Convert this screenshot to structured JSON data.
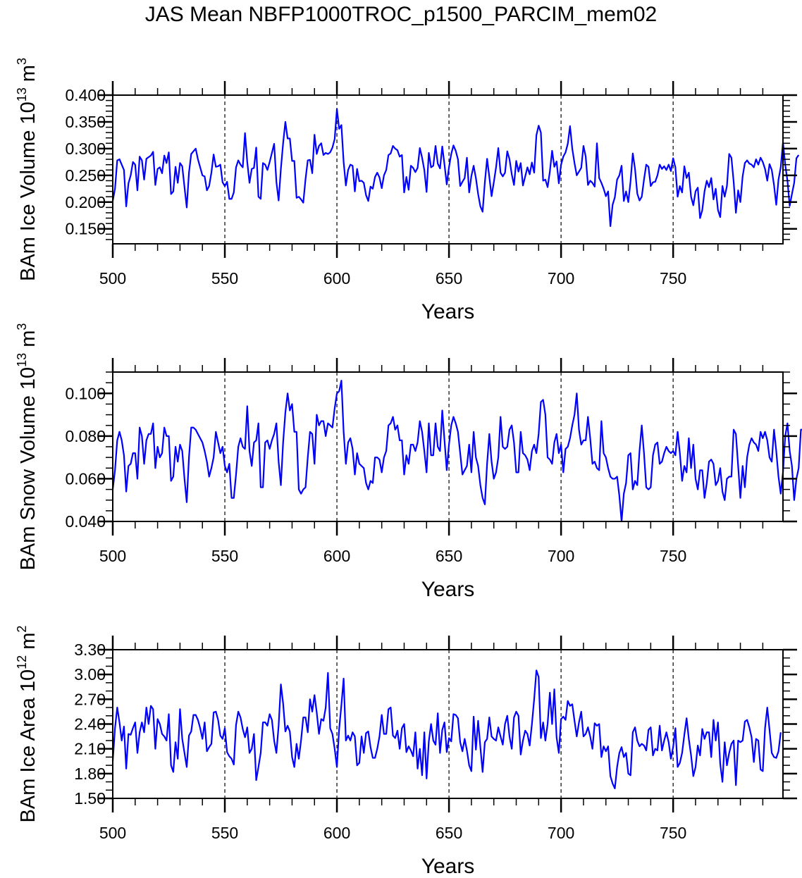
{
  "chart_data": {
    "title": "JAS Mean NBFP1000TROC_p1500_PARCIM_mem02",
    "panels": [
      {
        "type": "line",
        "ylabel": "BAm Ice Volume 10",
        "ylabel_exp": "13",
        "ylabel_unit": " m",
        "ylabel_unit_exp": "3",
        "xlabel": "Years",
        "xlim": [
          500,
          799
        ],
        "ylim": [
          0.122,
          0.4
        ],
        "x_ticks": [
          "500",
          "550",
          "600",
          "650",
          "700",
          "750"
        ],
        "x_tick_values": [
          500,
          550,
          600,
          650,
          700,
          750
        ],
        "y_ticks": [
          "0.150",
          "0.200",
          "0.250",
          "0.300",
          "0.350",
          "0.400"
        ],
        "y_tick_values": [
          0.15,
          0.2,
          0.25,
          0.3,
          0.35,
          0.4
        ],
        "y_minor_step": 0.01,
        "vlines": [
          550,
          600,
          650,
          700,
          750
        ],
        "line_color": "#0000ff",
        "x_start": 500,
        "values": [
          0.202,
          0.225,
          0.278,
          0.28,
          0.27,
          0.26,
          0.192,
          0.235,
          0.25,
          0.275,
          0.27,
          0.222,
          0.285,
          0.278,
          0.242,
          0.281,
          0.284,
          0.287,
          0.294,
          0.232,
          0.262,
          0.265,
          0.254,
          0.287,
          0.273,
          0.293,
          0.215,
          0.22,
          0.266,
          0.236,
          0.273,
          0.267,
          0.228,
          0.19,
          0.255,
          0.29,
          0.295,
          0.3,
          0.28,
          0.265,
          0.25,
          0.248,
          0.222,
          0.23,
          0.255,
          0.289,
          0.266,
          0.267,
          0.27,
          0.237,
          0.23,
          0.238,
          0.206,
          0.206,
          0.218,
          0.265,
          0.278,
          0.27,
          0.265,
          0.329,
          0.275,
          0.236,
          0.262,
          0.264,
          0.302,
          0.21,
          0.206,
          0.273,
          0.27,
          0.26,
          0.275,
          0.292,
          0.309,
          0.238,
          0.203,
          0.262,
          0.31,
          0.35,
          0.319,
          0.319,
          0.277,
          0.277,
          0.208,
          0.21,
          0.205,
          0.199,
          0.243,
          0.278,
          0.279,
          0.254,
          0.326,
          0.29,
          0.305,
          0.31,
          0.288,
          0.292,
          0.29,
          0.293,
          0.302,
          0.318,
          0.374,
          0.337,
          0.344,
          0.275,
          0.231,
          0.26,
          0.27,
          0.268,
          0.22,
          0.262,
          0.239,
          0.24,
          0.236,
          0.213,
          0.202,
          0.229,
          0.225,
          0.247,
          0.255,
          0.246,
          0.226,
          0.25,
          0.26,
          0.288,
          0.291,
          0.305,
          0.3,
          0.297,
          0.285,
          0.288,
          0.218,
          0.247,
          0.223,
          0.268,
          0.264,
          0.256,
          0.264,
          0.301,
          0.283,
          0.26,
          0.219,
          0.292,
          0.265,
          0.268,
          0.305,
          0.272,
          0.263,
          0.304,
          0.27,
          0.233,
          0.265,
          0.29,
          0.306,
          0.296,
          0.28,
          0.23,
          0.238,
          0.245,
          0.283,
          0.218,
          0.249,
          0.268,
          0.245,
          0.215,
          0.192,
          0.182,
          0.237,
          0.281,
          0.247,
          0.211,
          0.237,
          0.265,
          0.301,
          0.255,
          0.248,
          0.255,
          0.295,
          0.28,
          0.252,
          0.232,
          0.277,
          0.257,
          0.273,
          0.231,
          0.248,
          0.265,
          0.252,
          0.274,
          0.255,
          0.325,
          0.343,
          0.33,
          0.24,
          0.242,
          0.228,
          0.257,
          0.296,
          0.266,
          0.276,
          0.235,
          0.27,
          0.285,
          0.293,
          0.309,
          0.342,
          0.3,
          0.273,
          0.25,
          0.257,
          0.264,
          0.305,
          0.285,
          0.232,
          0.24,
          0.236,
          0.229,
          0.31,
          0.245,
          0.236,
          0.225,
          0.211,
          0.22,
          0.155,
          0.195,
          0.209,
          0.242,
          0.25,
          0.268,
          0.202,
          0.22,
          0.2,
          0.239,
          0.291,
          0.262,
          0.216,
          0.203,
          0.21,
          0.242,
          0.27,
          0.266,
          0.23,
          0.237,
          0.238,
          0.25,
          0.27,
          0.262,
          0.267,
          0.26,
          0.27,
          0.258,
          0.282,
          0.265,
          0.21,
          0.23,
          0.218,
          0.267,
          0.245,
          0.255,
          0.21,
          0.194,
          0.22,
          0.227,
          0.17,
          0.185,
          0.22,
          0.24,
          0.228,
          0.245,
          0.205,
          0.225,
          0.185,
          0.172,
          0.23,
          0.21,
          0.23,
          0.29,
          0.283,
          0.238,
          0.18,
          0.222,
          0.2,
          0.248,
          0.273,
          0.278,
          0.272,
          0.27,
          0.265,
          0.28,
          0.27,
          0.283,
          0.275,
          0.262,
          0.24,
          0.271,
          0.26,
          0.232,
          0.195,
          0.242,
          0.265,
          0.312,
          0.27,
          0.24,
          0.193,
          0.215,
          0.236,
          0.282,
          0.288
        ]
      },
      {
        "type": "line",
        "ylabel": "BAm Snow Volume 10",
        "ylabel_exp": "13",
        "ylabel_unit": " m",
        "ylabel_unit_exp": "3",
        "xlabel": "Years",
        "xlim": [
          500,
          799
        ],
        "ylim": [
          0.04,
          0.11
        ],
        "x_ticks": [
          "500",
          "550",
          "600",
          "650",
          "700",
          "750"
        ],
        "x_tick_values": [
          500,
          550,
          600,
          650,
          700,
          750
        ],
        "y_ticks": [
          "0.040",
          "0.060",
          "0.080",
          "0.100"
        ],
        "y_tick_values": [
          0.04,
          0.06,
          0.08,
          0.1
        ],
        "y_minor_step": 0.005,
        "vlines": [
          550,
          600,
          650,
          700,
          750
        ],
        "line_color": "#0000ff",
        "x_start": 500,
        "values": [
          0.055,
          0.064,
          0.078,
          0.082,
          0.078,
          0.071,
          0.054,
          0.066,
          0.067,
          0.072,
          0.072,
          0.06,
          0.084,
          0.08,
          0.067,
          0.078,
          0.081,
          0.081,
          0.086,
          0.065,
          0.075,
          0.07,
          0.072,
          0.084,
          0.08,
          0.08,
          0.059,
          0.061,
          0.075,
          0.068,
          0.076,
          0.073,
          0.06,
          0.049,
          0.07,
          0.084,
          0.084,
          0.083,
          0.081,
          0.079,
          0.077,
          0.073,
          0.068,
          0.061,
          0.065,
          0.07,
          0.082,
          0.077,
          0.072,
          0.075,
          0.066,
          0.063,
          0.067,
          0.051,
          0.051,
          0.062,
          0.075,
          0.079,
          0.075,
          0.074,
          0.094,
          0.073,
          0.066,
          0.077,
          0.078,
          0.086,
          0.056,
          0.056,
          0.077,
          0.078,
          0.074,
          0.078,
          0.081,
          0.086,
          0.068,
          0.057,
          0.077,
          0.091,
          0.1,
          0.092,
          0.095,
          0.082,
          0.082,
          0.055,
          0.053,
          0.055,
          0.056,
          0.07,
          0.082,
          0.081,
          0.067,
          0.09,
          0.085,
          0.087,
          0.087,
          0.08,
          0.086,
          0.085,
          0.084,
          0.093,
          0.1,
          0.101,
          0.106,
          0.082,
          0.067,
          0.077,
          0.079,
          0.074,
          0.062,
          0.072,
          0.067,
          0.066,
          0.065,
          0.058,
          0.055,
          0.059,
          0.058,
          0.07,
          0.07,
          0.069,
          0.063,
          0.07,
          0.073,
          0.085,
          0.086,
          0.089,
          0.083,
          0.085,
          0.078,
          0.078,
          0.062,
          0.071,
          0.067,
          0.076,
          0.076,
          0.073,
          0.077,
          0.087,
          0.082,
          0.073,
          0.063,
          0.086,
          0.071,
          0.071,
          0.086,
          0.075,
          0.073,
          0.092,
          0.078,
          0.064,
          0.076,
          0.085,
          0.089,
          0.086,
          0.082,
          0.072,
          0.062,
          0.064,
          0.066,
          0.076,
          0.063,
          0.082,
          0.07,
          0.066,
          0.057,
          0.051,
          0.048,
          0.067,
          0.081,
          0.068,
          0.06,
          0.063,
          0.07,
          0.089,
          0.075,
          0.074,
          0.075,
          0.083,
          0.085,
          0.077,
          0.063,
          0.063,
          0.082,
          0.072,
          0.071,
          0.069,
          0.064,
          0.073,
          0.076,
          0.072,
          0.081,
          0.096,
          0.097,
          0.09,
          0.07,
          0.069,
          0.067,
          0.077,
          0.081,
          0.072,
          0.076,
          0.063,
          0.074,
          0.075,
          0.079,
          0.085,
          0.09,
          0.1,
          0.083,
          0.076,
          0.078,
          0.078,
          0.089,
          0.079,
          0.067,
          0.068,
          0.065,
          0.064,
          0.087,
          0.072,
          0.07,
          0.065,
          0.061,
          0.06,
          0.06,
          0.061,
          0.052,
          0.04,
          0.053,
          0.058,
          0.071,
          0.072,
          0.055,
          0.059,
          0.057,
          0.073,
          0.085,
          0.072,
          0.056,
          0.055,
          0.056,
          0.071,
          0.076,
          0.077,
          0.067,
          0.068,
          0.072,
          0.075,
          0.073,
          0.072,
          0.073,
          0.071,
          0.082,
          0.072,
          0.059,
          0.066,
          0.063,
          0.079,
          0.065,
          0.076,
          0.06,
          0.055,
          0.064,
          0.064,
          0.051,
          0.058,
          0.068,
          0.069,
          0.067,
          0.057,
          0.059,
          0.065,
          0.054,
          0.05,
          0.06,
          0.061,
          0.061,
          0.083,
          0.081,
          0.066,
          0.051,
          0.066,
          0.056,
          0.07,
          0.076,
          0.079,
          0.077,
          0.076,
          0.073,
          0.082,
          0.079,
          0.082,
          0.078,
          0.07,
          0.068,
          0.083,
          0.073,
          0.061,
          0.053,
          0.063,
          0.08,
          0.086,
          0.073,
          0.066,
          0.05,
          0.06,
          0.065,
          0.083,
          0.083
        ]
      },
      {
        "type": "line",
        "ylabel": "BAm Ice Area 10",
        "ylabel_exp": "12",
        "ylabel_unit": " m",
        "ylabel_unit_exp": "2",
        "xlabel": "Years",
        "xlim": [
          500,
          799
        ],
        "ylim": [
          1.5,
          3.3
        ],
        "x_ticks": [
          "500",
          "550",
          "600",
          "650",
          "700",
          "750"
        ],
        "x_tick_values": [
          500,
          550,
          600,
          650,
          700,
          750
        ],
        "y_ticks": [
          "1.50",
          "1.80",
          "2.10",
          "2.40",
          "2.70",
          "3.00",
          "3.30"
        ],
        "y_tick_values": [
          1.5,
          1.8,
          2.1,
          2.4,
          2.7,
          3.0,
          3.3
        ],
        "y_minor_step": 0.1,
        "vlines": [
          550,
          600,
          650,
          700,
          750
        ],
        "line_color": "#0000ff",
        "x_start": 500,
        "values": [
          1.95,
          2.35,
          2.6,
          2.42,
          2.2,
          2.37,
          1.86,
          2.28,
          2.27,
          2.35,
          2.42,
          2.05,
          2.3,
          2.42,
          2.3,
          2.6,
          2.4,
          2.62,
          2.58,
          2.1,
          2.46,
          2.4,
          2.28,
          2.25,
          2.2,
          2.52,
          1.9,
          1.82,
          2.18,
          1.98,
          2.58,
          2.22,
          2.05,
          1.88,
          2.26,
          2.31,
          2.51,
          2.51,
          2.45,
          2.35,
          2.22,
          2.42,
          2.07,
          2.12,
          2.16,
          2.54,
          2.55,
          2.45,
          2.26,
          2.22,
          2.35,
          2.06,
          2.01,
          1.98,
          1.91,
          2.39,
          2.55,
          2.48,
          2.34,
          2.24,
          2.36,
          2.05,
          2.1,
          2.28,
          1.72,
          1.88,
          2.05,
          2.42,
          2.42,
          2.38,
          2.52,
          2.45,
          2.2,
          2.05,
          2.38,
          2.88,
          2.65,
          2.31,
          2.38,
          2.31,
          2.0,
          1.88,
          2.16,
          1.98,
          2.2,
          2.48,
          2.48,
          2.3,
          2.7,
          2.55,
          2.75,
          2.54,
          2.28,
          2.46,
          2.44,
          2.6,
          3.02,
          2.35,
          2.28,
          2.1,
          1.88,
          2.34,
          2.63,
          2.95,
          2.2,
          2.26,
          2.2,
          2.3,
          2.25,
          1.9,
          1.93,
          2.25,
          2.05,
          2.29,
          2.31,
          2.12,
          1.99,
          1.99,
          2.1,
          2.25,
          2.51,
          2.28,
          2.28,
          2.58,
          2.6,
          2.26,
          2.23,
          2.32,
          2.1,
          2.35,
          2.4,
          2.06,
          2.13,
          2.08,
          2.01,
          2.3,
          1.86,
          2.1,
          1.78,
          2.3,
          1.74,
          2.19,
          2.4,
          2.2,
          2.15,
          2.53,
          2.05,
          2.33,
          2.42,
          2.06,
          2.23,
          2.19,
          2.52,
          2.51,
          2.47,
          2.18,
          2.07,
          2.22,
          2.08,
          1.9,
          1.83,
          2.49,
          2.09,
          2.44,
          2.12,
          1.82,
          2.18,
          2.22,
          2.48,
          2.25,
          2.22,
          2.2,
          2.36,
          2.25,
          2.15,
          2.4,
          2.5,
          2.25,
          2.1,
          2.48,
          2.55,
          2.5,
          2.03,
          2.2,
          2.32,
          2.28,
          2.14,
          2.4,
          2.7,
          3.05,
          2.97,
          2.23,
          2.42,
          2.2,
          2.4,
          2.78,
          2.4,
          2.82,
          2.24,
          2.05,
          2.46,
          2.49,
          2.45,
          2.68,
          2.62,
          2.64,
          2.44,
          2.25,
          2.42,
          2.55,
          2.25,
          2.28,
          2.36,
          2.25,
          2.1,
          2.41,
          2.38,
          2.4,
          2.0,
          2.13,
          2.07,
          2.13,
          1.77,
          1.68,
          1.62,
          1.88,
          2.05,
          2.12,
          2.0,
          2.05,
          1.8,
          1.78,
          2.3,
          2.36,
          2.2,
          2.13,
          2.16,
          2.14,
          2.08,
          2.33,
          2.36,
          2.02,
          2.1,
          2.08,
          2.38,
          2.08,
          2.2,
          2.3,
          2.18,
          1.98,
          2.12,
          2.35,
          1.88,
          1.93,
          2.05,
          2.27,
          2.47,
          2.22,
          2.02,
          1.77,
          1.88,
          2.14,
          2.02,
          2.34,
          2.22,
          2.3,
          2.3,
          2.0,
          2.45,
          2.2,
          2.42,
          1.92,
          1.7,
          2.18,
          1.9,
          2.05,
          2.16,
          2.2,
          1.66,
          2.2,
          2.18,
          2.2,
          2.43,
          2.45,
          2.36,
          2.24,
          1.94,
          2.22,
          2.2,
          1.85,
          1.83,
          2.35,
          2.6,
          2.33,
          2.05,
          2.0,
          1.99,
          2.07,
          2.3
        ]
      }
    ]
  }
}
